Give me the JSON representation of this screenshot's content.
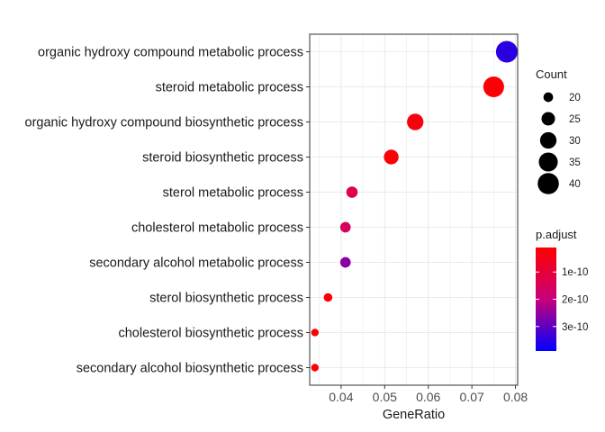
{
  "chart_data": {
    "type": "scatter",
    "xlabel": "GeneRatio",
    "ylabel": "",
    "xlim": [
      0.0328,
      0.0805
    ],
    "x_ticks": [
      0.04,
      0.05,
      0.06,
      0.07,
      0.08
    ],
    "x_tick_labels": [
      "0.04",
      "0.05",
      "0.06",
      "0.07",
      "0.08"
    ],
    "grid": true,
    "categories": [
      "organic hydroxy compound metabolic process",
      "steroid metabolic process",
      "organic hydroxy compound biosynthetic process",
      "steroid biosynthetic process",
      "sterol metabolic process",
      "cholesterol metabolic process",
      "secondary alcohol metabolic process",
      "sterol biosynthetic process",
      "cholesterol biosynthetic process",
      "secondary alcohol biosynthetic process"
    ],
    "points": [
      {
        "term": "organic hydroxy compound metabolic process",
        "gene_ratio": 0.078,
        "count": 41,
        "p_adjust": 3.5e-10
      },
      {
        "term": "steroid metabolic process",
        "gene_ratio": 0.075,
        "count": 39,
        "p_adjust": 2e-11
      },
      {
        "term": "organic hydroxy compound biosynthetic process",
        "gene_ratio": 0.057,
        "count": 30,
        "p_adjust": 3e-11
      },
      {
        "term": "steroid biosynthetic process",
        "gene_ratio": 0.0515,
        "count": 27,
        "p_adjust": 2e-11
      },
      {
        "term": "sterol metabolic process",
        "gene_ratio": 0.0425,
        "count": 22,
        "p_adjust": 1.2e-10
      },
      {
        "term": "cholesterol metabolic process",
        "gene_ratio": 0.041,
        "count": 21,
        "p_adjust": 1.5e-10
      },
      {
        "term": "secondary alcohol metabolic process",
        "gene_ratio": 0.041,
        "count": 21,
        "p_adjust": 2.6e-10
      },
      {
        "term": "sterol biosynthetic process",
        "gene_ratio": 0.037,
        "count": 19,
        "p_adjust": 2e-11
      },
      {
        "term": "cholesterol biosynthetic process",
        "gene_ratio": 0.034,
        "count": 18,
        "p_adjust": 2e-11
      },
      {
        "term": "secondary alcohol biosynthetic process",
        "gene_ratio": 0.034,
        "count": 18,
        "p_adjust": 2e-11
      }
    ],
    "legend": {
      "size": {
        "title": "Count",
        "values": [
          20,
          25,
          30,
          35,
          40
        ],
        "labels": [
          "20",
          "25",
          "30",
          "35",
          "40"
        ]
      },
      "color": {
        "title": "p.adjust",
        "range": [
          1e-11,
          3.9e-10
        ],
        "breaks": [
          1e-10,
          2e-10,
          3e-10
        ],
        "labels": [
          "1e-10",
          "2e-10",
          "3e-10"
        ],
        "low_color": "#ff0000",
        "high_color": "#0000ff"
      }
    },
    "placement": {
      "legend": "right"
    },
    "colors": {
      "panel_border": "#333333",
      "grid": "#ebebeb",
      "point_outline": "none"
    }
  }
}
